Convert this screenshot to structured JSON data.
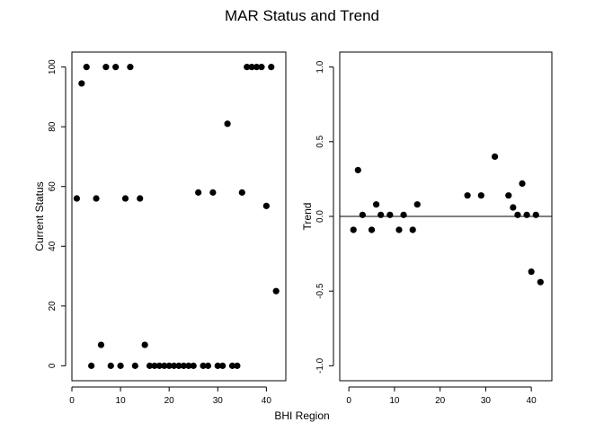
{
  "figure": {
    "title": "MAR Status and Trend",
    "shared_xlabel": "BHI Region"
  },
  "chart_data": [
    {
      "type": "scatter",
      "name": "status-panel",
      "ylabel": "Current Status",
      "xlim": [
        0,
        44
      ],
      "ylim": [
        -5,
        105
      ],
      "xticks": [
        0,
        10,
        20,
        30,
        40
      ],
      "yticks": [
        0,
        20,
        40,
        60,
        80,
        100
      ],
      "x": [
        1,
        2,
        3,
        4,
        5,
        6,
        7,
        8,
        9,
        10,
        11,
        12,
        13,
        14,
        15,
        16,
        17,
        18,
        19,
        20,
        21,
        22,
        23,
        24,
        25,
        26,
        27,
        28,
        29,
        30,
        31,
        32,
        33,
        34,
        35,
        36,
        37,
        38,
        39,
        40,
        41,
        42
      ],
      "y": [
        56,
        94.5,
        100,
        0,
        56,
        7,
        100,
        0,
        100,
        0,
        56,
        100,
        0,
        56,
        7,
        0,
        0,
        0,
        0,
        0,
        0,
        0,
        0,
        0,
        0,
        58,
        0,
        0,
        58,
        0,
        0,
        81,
        0,
        0,
        58,
        100,
        100,
        100,
        100,
        53.5,
        100,
        25
      ]
    },
    {
      "type": "scatter",
      "name": "trend-panel",
      "ylabel": "Trend",
      "xlim": [
        -2,
        44.5
      ],
      "ylim": [
        -1.1,
        1.1
      ],
      "xticks": [
        0,
        10,
        20,
        30,
        40
      ],
      "yticks": [
        -1.0,
        -0.5,
        0.0,
        0.5,
        1.0
      ],
      "ytick_labels": [
        "-1.0",
        "-0.5",
        "0.0",
        "0.5",
        "1.0"
      ],
      "hline": 0,
      "x": [
        1,
        2,
        3,
        5,
        6,
        7,
        9,
        11,
        12,
        14,
        15,
        26,
        29,
        32,
        35,
        36,
        37,
        38,
        39,
        40,
        41,
        42
      ],
      "y": [
        -0.09,
        0.31,
        0.01,
        -0.09,
        0.08,
        0.01,
        0.01,
        -0.09,
        0.01,
        -0.09,
        0.08,
        0.14,
        0.14,
        0.4,
        0.14,
        0.06,
        0.01,
        0.22,
        0.01,
        -0.37,
        0.01,
        -0.44
      ]
    }
  ]
}
